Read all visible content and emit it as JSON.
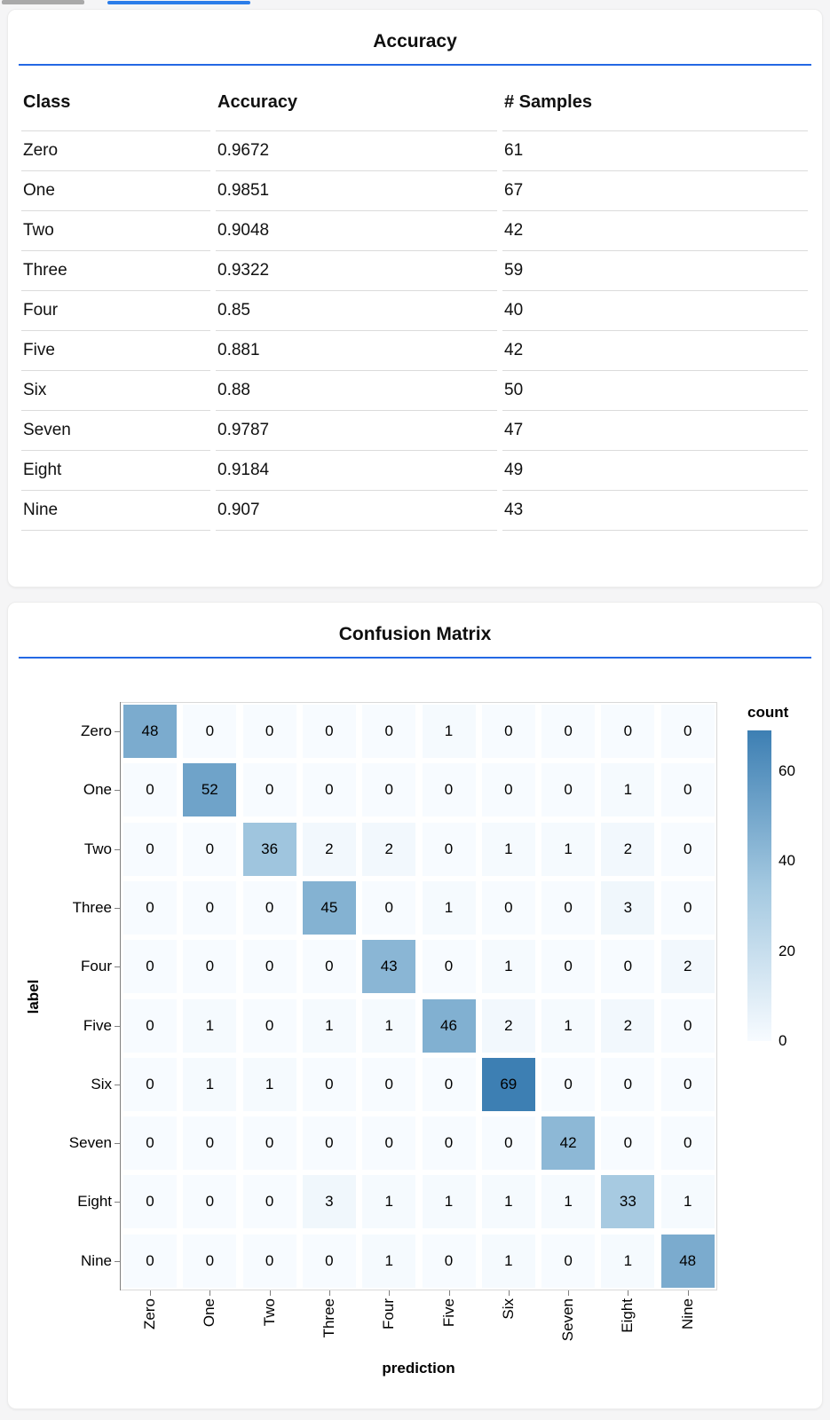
{
  "page_background": "#f5f5f6",
  "top_tabs": {
    "inactive_bar_color": "#a9a9a9",
    "active_bar_color": "#2b7de9"
  },
  "colors": {
    "accent_blue": "#2468e4",
    "heat_low": "#f7fbff",
    "heat_mid": "#a3c8e0",
    "heat_high": "#3d7fb3"
  },
  "chart_data": [
    {
      "type": "table",
      "title": "Accuracy",
      "columns": [
        "Class",
        "Accuracy",
        "# Samples"
      ],
      "rows": [
        [
          "Zero",
          "0.9672",
          "61"
        ],
        [
          "One",
          "0.9851",
          "67"
        ],
        [
          "Two",
          "0.9048",
          "42"
        ],
        [
          "Three",
          "0.9322",
          "59"
        ],
        [
          "Four",
          "0.85",
          "40"
        ],
        [
          "Five",
          "0.881",
          "42"
        ],
        [
          "Six",
          "0.88",
          "50"
        ],
        [
          "Seven",
          "0.9787",
          "47"
        ],
        [
          "Eight",
          "0.9184",
          "49"
        ],
        [
          "Nine",
          "0.907",
          "43"
        ]
      ]
    },
    {
      "type": "heatmap",
      "title": "Confusion Matrix",
      "xlabel": "prediction",
      "ylabel": "label",
      "x_categories": [
        "Zero",
        "One",
        "Two",
        "Three",
        "Four",
        "Five",
        "Six",
        "Seven",
        "Eight",
        "Nine"
      ],
      "y_categories": [
        "Zero",
        "One",
        "Two",
        "Three",
        "Four",
        "Five",
        "Six",
        "Seven",
        "Eight",
        "Nine"
      ],
      "values": [
        [
          48,
          0,
          0,
          0,
          0,
          1,
          0,
          0,
          0,
          0
        ],
        [
          0,
          52,
          0,
          0,
          0,
          0,
          0,
          0,
          1,
          0
        ],
        [
          0,
          0,
          36,
          2,
          2,
          0,
          1,
          1,
          2,
          0
        ],
        [
          0,
          0,
          0,
          45,
          0,
          1,
          0,
          0,
          3,
          0
        ],
        [
          0,
          0,
          0,
          0,
          43,
          0,
          1,
          0,
          0,
          2
        ],
        [
          0,
          1,
          0,
          1,
          1,
          46,
          2,
          1,
          2,
          0
        ],
        [
          0,
          1,
          1,
          0,
          0,
          0,
          69,
          0,
          0,
          0
        ],
        [
          0,
          0,
          0,
          0,
          0,
          0,
          0,
          42,
          0,
          0
        ],
        [
          0,
          0,
          0,
          3,
          1,
          1,
          1,
          1,
          33,
          1
        ],
        [
          0,
          0,
          0,
          0,
          1,
          0,
          1,
          0,
          1,
          48
        ]
      ],
      "legend": {
        "title": "count",
        "ticks": [
          0,
          20,
          40,
          60
        ],
        "domain": [
          0,
          69
        ]
      },
      "grid": false,
      "legend_position": "right"
    }
  ]
}
